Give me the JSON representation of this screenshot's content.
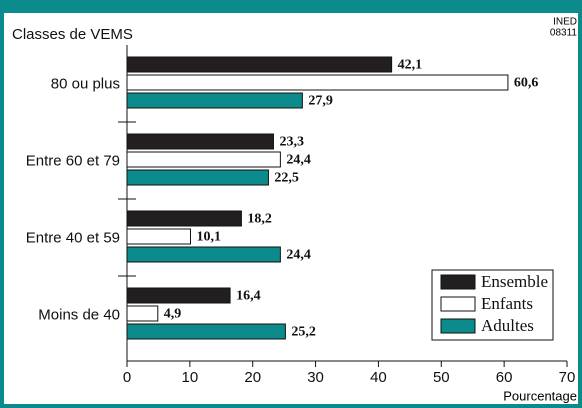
{
  "chart_data": {
    "type": "bar",
    "orientation": "horizontal",
    "source": "INED",
    "code": "08311",
    "ylabel": "Classes de VEMS",
    "xlabel": "Pourcentage",
    "categories": [
      "80 ou plus",
      "Entre 60 et 79",
      "Entre 40 et 59",
      "Moins de 40"
    ],
    "series": [
      {
        "name": "Ensemble",
        "color": "#231f20",
        "values": [
          42.1,
          23.3,
          18.2,
          16.4
        ],
        "value_labels": [
          "42,1",
          "23,3",
          "18,2",
          "16,4"
        ]
      },
      {
        "name": "Enfants",
        "color": "#ffffff",
        "values": [
          60.6,
          24.4,
          10.1,
          4.9
        ],
        "value_labels": [
          "60,6",
          "24,4",
          "10,1",
          "4,9"
        ]
      },
      {
        "name": "Adultes",
        "color": "#0b8b8c",
        "values": [
          27.9,
          22.5,
          24.4,
          25.2
        ],
        "value_labels": [
          "27,9",
          "22,5",
          "24,4",
          "25,2"
        ]
      }
    ],
    "xlim": [
      0,
      70
    ],
    "xticks": [
      0,
      10,
      20,
      30,
      40,
      50,
      60,
      70
    ],
    "legend": "lower right"
  }
}
